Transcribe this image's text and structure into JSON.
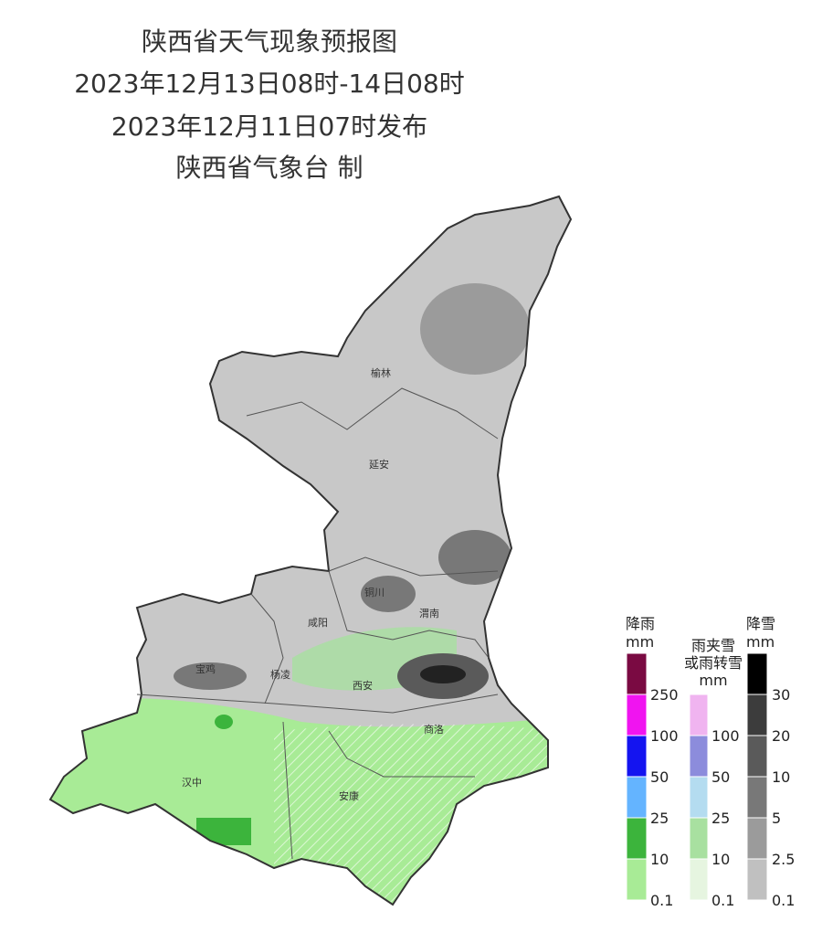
{
  "header": {
    "title": "陕西省天气现象预报图",
    "period": "2023年12月13日08时-14日08时",
    "issued": "2023年12月11日07时发布",
    "producer": "陕西省气象台 制"
  },
  "cities": [
    {
      "label": "榆林"
    },
    {
      "label": "延安"
    },
    {
      "label": "铜川"
    },
    {
      "label": "咸阳"
    },
    {
      "label": "渭南"
    },
    {
      "label": "宝鸡"
    },
    {
      "label": "杨凌"
    },
    {
      "label": "西安"
    },
    {
      "label": "商洛"
    },
    {
      "label": "汉中"
    },
    {
      "label": "安康"
    }
  ],
  "legend": {
    "rain": {
      "title": "降雨",
      "unit": "mm",
      "ticks": [
        250,
        100,
        50,
        25,
        10,
        0.1
      ],
      "colors": [
        "#7a0a42",
        "#f014f0",
        "#1414f0",
        "#64b4ff",
        "#3cb43c",
        "#a8eb96"
      ]
    },
    "sleet": {
      "title": "雨夹雪",
      "title2": "或雨转雪",
      "unit": "mm",
      "ticks": [
        100,
        50,
        25,
        10,
        0.1
      ],
      "colors": [
        "#f0b4f0",
        "#8c8cdc",
        "#b4dcf0",
        "#a8e0a0",
        "#e6f5e0"
      ]
    },
    "snow": {
      "title": "降雪",
      "unit": "mm",
      "ticks": [
        30,
        20,
        10,
        5,
        2.5,
        0.1
      ],
      "colors": [
        "#000000",
        "#3c3c3c",
        "#5a5a5a",
        "#787878",
        "#9b9b9b",
        "#c0c0c0"
      ]
    }
  }
}
